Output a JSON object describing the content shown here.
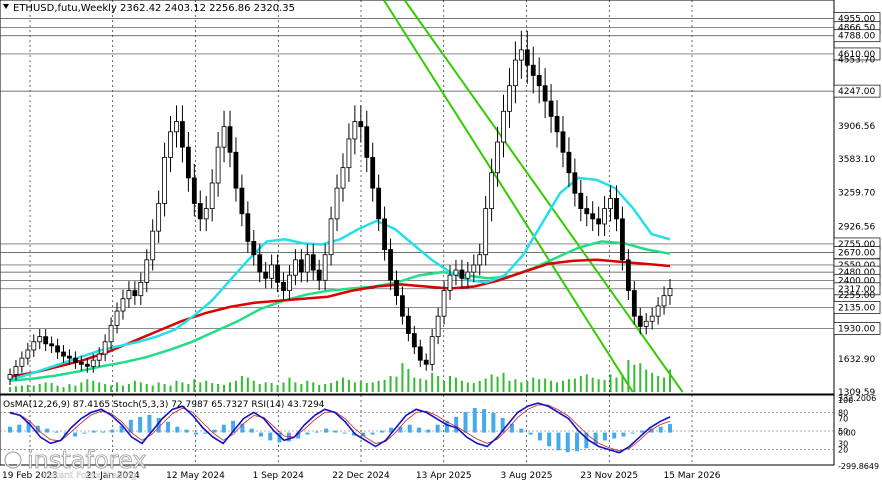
{
  "header": {
    "symbol_line": "ETHUSD,futu,Weekly  2362.42 2403.12 2256.86 2320.35"
  },
  "indicator_header": {
    "text": "OsMA(12,26,9) 87.4165  Stoch(5,3,3) 72.7987 65.7327  RSI(14) 43.7294"
  },
  "watermark": {
    "brand": "instaforex",
    "tagline": "Instant Forex Trading"
  },
  "colors": {
    "candle": "#000000",
    "grid": "#000000",
    "trend_channel": "#33cc00",
    "ma_fast": "#22e0e8",
    "ma_mid": "#22dd88",
    "ma_slow": "#dd0000",
    "volume": "#33bb33",
    "osma_bars": "#44aaee",
    "stoch_main": "#1111cc",
    "stoch_signal": "#cc2222",
    "price_label_bg": "#ffffff"
  },
  "chart_data": [
    {
      "type": "candlestick",
      "title": "ETHUSD,futu,Weekly",
      "ohlc_last": {
        "open": 2362.42,
        "high": 2403.12,
        "low": 2256.86,
        "close": 2320.35
      },
      "y_axis": {
        "scale": "linear",
        "ylim": [
          1309.59,
          5000
        ],
        "tick_labels": [
          "4955.00",
          "4866.50",
          "4788.00",
          "4610.00",
          "4553.70",
          "4247.00",
          "3906.56",
          "3583.10",
          "3259.70",
          "2926.56",
          "2755.00",
          "2670.00",
          "2550.00",
          "2480.00",
          "2400.00",
          "2317.00",
          "2255.00",
          "2135.00",
          "1930.00",
          "1632.90",
          "1309.59"
        ]
      },
      "x_axis": {
        "tick_labels": [
          "19 Feb 2023",
          "21 Jan 2024",
          "12 May 2024",
          "1 Sep 2024",
          "22 Dec 2024",
          "13 Apr 2025",
          "3 Aug 2025",
          "23 Nov 2025",
          "15 Mar 2026"
        ]
      },
      "levels": [
        4955.0,
        4866.5,
        4788.0,
        4610.0,
        4247.0,
        2755.0,
        2670.0,
        2550.0,
        2480.0,
        2400.0,
        2317.0,
        2135.0,
        1930.0
      ],
      "closes": [
        1480,
        1560,
        1640,
        1720,
        1800,
        1850,
        1780,
        1760,
        1700,
        1660,
        1640,
        1600,
        1580,
        1560,
        1620,
        1680,
        1800,
        1960,
        2100,
        2220,
        2300,
        2250,
        2380,
        2600,
        2880,
        3150,
        3600,
        3850,
        3950,
        3700,
        3400,
        3150,
        3000,
        3100,
        3350,
        3700,
        3900,
        3650,
        3300,
        3050,
        2780,
        2650,
        2480,
        2420,
        2550,
        2380,
        2300,
        2450,
        2600,
        2480,
        2650,
        2500,
        2400,
        2650,
        3000,
        3300,
        3500,
        3780,
        3950,
        3900,
        3600,
        3300,
        3000,
        2700,
        2400,
        2250,
        2050,
        1880,
        1750,
        1620,
        1580,
        1850,
        2050,
        2300,
        2450,
        2500,
        2420,
        2480,
        2550,
        2650,
        3100,
        3450,
        3750,
        4050,
        4300,
        4550,
        4650,
        4500,
        4400,
        4300,
        4150,
        4000,
        3850,
        3650,
        3450,
        3250,
        3100,
        3050,
        3000,
        2950,
        3100,
        3200,
        3000,
        2600,
        2300,
        2050,
        1950,
        2000,
        2050,
        2150,
        2250,
        2320.35
      ],
      "volume_height_frac": [
        0.15,
        0.18,
        0.2,
        0.22,
        0.2,
        0.25,
        0.3,
        0.28,
        0.2,
        0.15,
        0.25,
        0.2,
        0.3,
        0.4,
        0.35,
        0.3,
        0.25,
        0.2,
        0.3,
        0.2,
        0.25,
        0.35,
        0.3,
        0.25,
        0.2,
        0.3,
        0.25,
        0.2,
        0.35,
        0.3,
        0.25,
        0.4,
        0.3,
        0.35,
        0.28,
        0.25,
        0.22,
        0.3,
        0.35,
        0.5,
        0.45,
        0.35,
        0.25,
        0.3,
        0.28,
        0.22,
        0.3,
        0.45,
        0.3,
        0.25,
        0.35,
        0.3,
        0.22,
        0.25,
        0.28,
        0.35,
        0.45,
        0.38,
        0.3,
        0.35,
        0.28,
        0.3,
        0.35,
        0.38,
        0.5,
        0.48,
        0.9,
        0.72,
        0.45,
        0.42,
        0.38,
        0.6,
        0.5,
        0.35,
        0.5,
        0.45,
        0.35,
        0.3,
        0.28,
        0.35,
        0.42,
        0.55,
        0.48,
        0.6,
        0.35,
        0.4,
        0.3,
        0.35,
        0.45,
        0.4,
        0.42,
        0.35,
        0.3,
        0.35,
        0.4,
        0.42,
        0.5,
        0.55,
        0.45,
        0.4,
        0.38,
        0.55,
        0.45,
        0.55,
        1.0,
        0.85,
        0.9,
        0.7,
        0.6,
        0.5,
        0.45,
        0.7
      ],
      "ma_fast": [
        1430,
        1480,
        1540,
        1600,
        1660,
        1720,
        1760,
        1800,
        1850,
        1920,
        2050,
        2200,
        2400,
        2600,
        2780,
        2800,
        2760,
        2750,
        2800,
        2900,
        2980,
        2900,
        2750,
        2600,
        2480,
        2400,
        2380,
        2450,
        2650,
        2950,
        3250,
        3400,
        3380,
        3300,
        3100,
        2850,
        2800
      ],
      "ma_mid": [
        1420,
        1440,
        1470,
        1510,
        1560,
        1600,
        1650,
        1720,
        1800,
        1900,
        2000,
        2120,
        2200,
        2260,
        2300,
        2320,
        2340,
        2380,
        2450,
        2480,
        2450,
        2420,
        2440,
        2520,
        2620,
        2720,
        2780,
        2760,
        2700,
        2660
      ],
      "ma_slow": [
        1460,
        1500,
        1560,
        1620,
        1700,
        1800,
        1900,
        2000,
        2080,
        2140,
        2180,
        2200,
        2220,
        2240,
        2300,
        2340,
        2360,
        2340,
        2320,
        2340,
        2400,
        2480,
        2560,
        2590,
        2600,
        2580,
        2560,
        2540
      ],
      "trend_channel": {
        "upper_start": [
          0.485,
          0.0
        ],
        "upper_end": [
          0.82,
          1.0
        ],
        "lower_start": [
          0.46,
          0.0
        ],
        "lower_end": [
          0.76,
          1.0
        ]
      }
    },
    {
      "type": "indicator",
      "title": "OsMA(12,26,9) 87.4165  Stoch(5,3,3) 72.7987 65.7327  RSI(14) 43.7294",
      "y_axis": {
        "tick_labels": [
          "332.2006",
          "100",
          "80",
          "70",
          "50",
          "30",
          "20",
          "0.00",
          "-299.8649"
        ]
      },
      "osma": {
        "name": "OsMA(12,26,9)",
        "last": 87.4165
      },
      "stoch": {
        "name": "Stoch(5,3,3)",
        "main_last": 72.7987,
        "signal_last": 65.7327
      },
      "rsi": {
        "name": "RSI(14)",
        "last": 43.7294
      },
      "osma_values": [
        60,
        80,
        110,
        70,
        40,
        10,
        -20,
        -40,
        -10,
        20,
        10,
        30,
        70,
        130,
        160,
        180,
        150,
        110,
        60,
        30,
        -20,
        -10,
        30,
        80,
        120,
        90,
        40,
        -40,
        -80,
        -100,
        -90,
        -60,
        -20,
        10,
        40,
        20,
        -10,
        -30,
        -40,
        -20,
        20,
        50,
        60,
        80,
        50,
        30,
        80,
        120,
        160,
        210,
        250,
        240,
        200,
        150,
        90,
        40,
        -20,
        -80,
        -140,
        -180,
        -200,
        -190,
        -160,
        -120,
        -80,
        -60,
        -40,
        -10,
        20,
        40,
        60,
        87.4165
      ],
      "stoch_main": [
        80,
        75,
        60,
        40,
        30,
        35,
        55,
        70,
        80,
        85,
        75,
        60,
        40,
        30,
        50,
        70,
        85,
        90,
        75,
        55,
        40,
        30,
        50,
        70,
        80,
        70,
        50,
        35,
        40,
        60,
        75,
        85,
        80,
        65,
        45,
        35,
        25,
        35,
        55,
        75,
        85,
        80,
        70,
        60,
        55,
        40,
        30,
        25,
        40,
        60,
        80,
        90,
        95,
        90,
        80,
        70,
        50,
        35,
        25,
        20,
        15,
        25,
        40,
        55,
        65,
        72.7987
      ],
      "stoch_signal": [
        78,
        76,
        65,
        48,
        36,
        34,
        48,
        63,
        76,
        82,
        78,
        65,
        47,
        35,
        45,
        62,
        78,
        87,
        80,
        63,
        47,
        35,
        45,
        62,
        75,
        72,
        57,
        42,
        40,
        53,
        68,
        80,
        81,
        70,
        53,
        40,
        30,
        33,
        48,
        67,
        80,
        82,
        75,
        65,
        57,
        47,
        37,
        30,
        37,
        53,
        72,
        85,
        92,
        92,
        84,
        74,
        58,
        42,
        30,
        23,
        18,
        22,
        35,
        50,
        60,
        65.7327
      ]
    }
  ]
}
